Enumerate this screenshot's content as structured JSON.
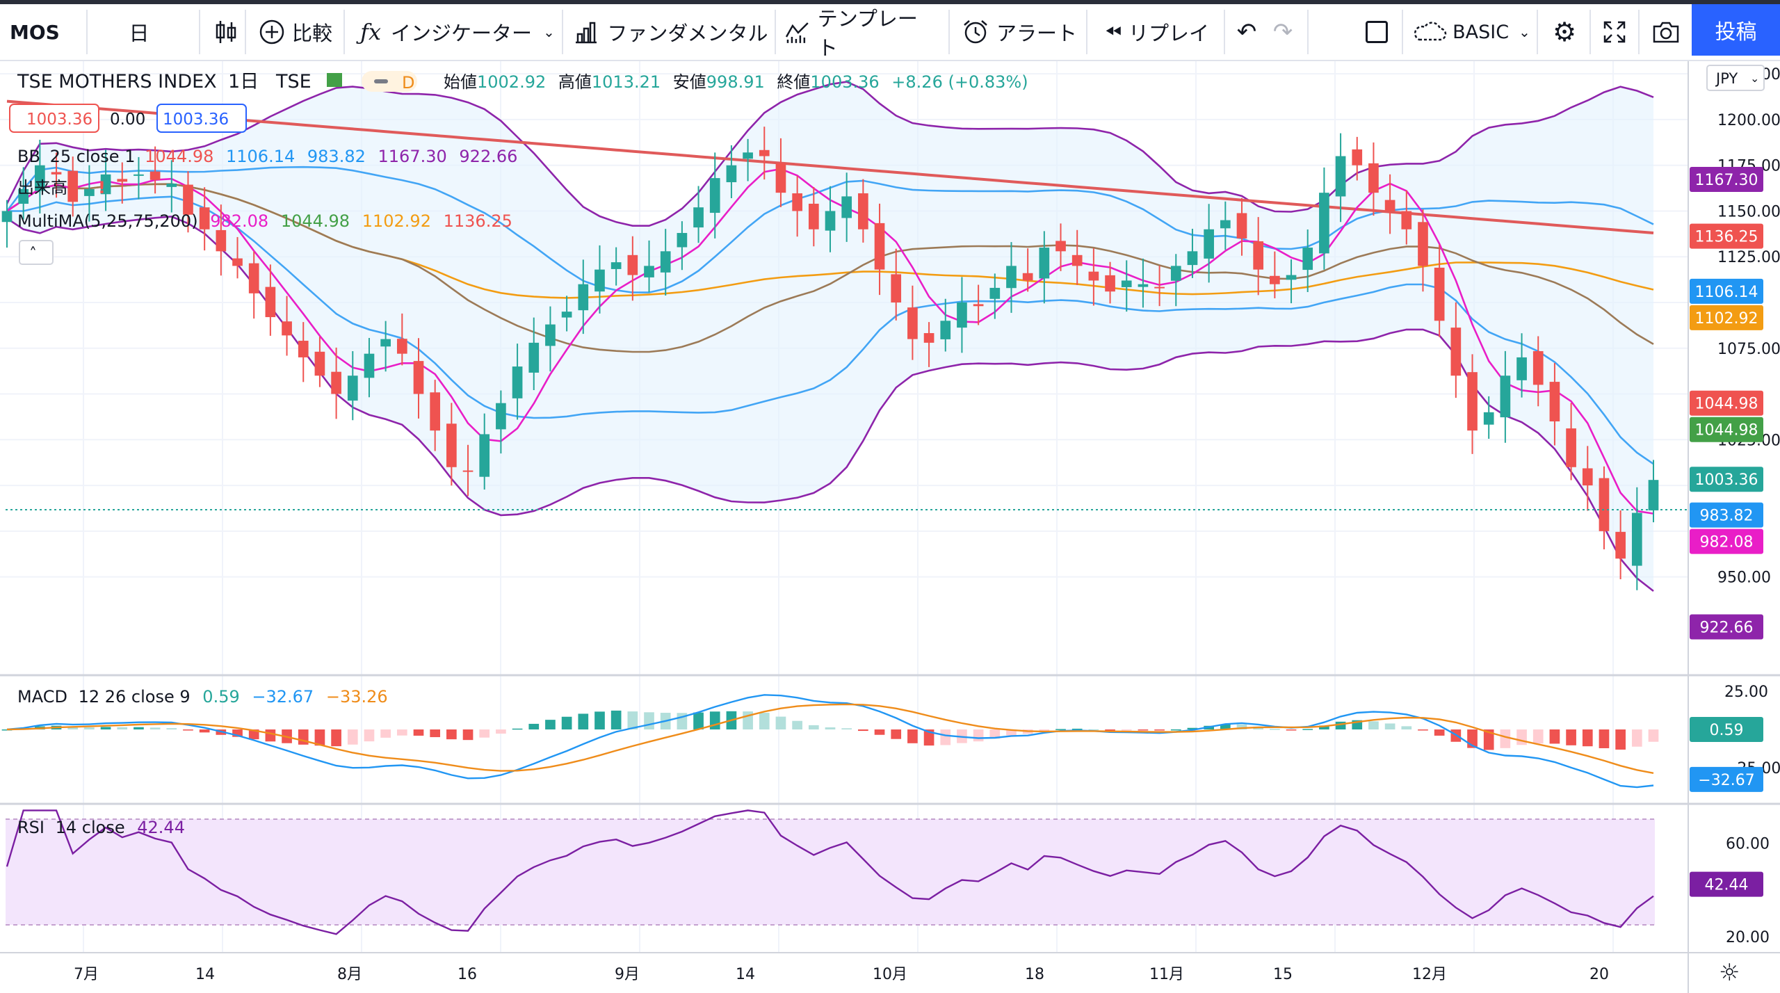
{
  "toolbar": {
    "symbol": "MOS",
    "interval": "日",
    "compare": "比較",
    "indicators": "インジケーター",
    "fundamentals": "ファンダメンタル",
    "templates": "テンプレート",
    "alert": "アラート",
    "replay": "リプレイ",
    "layout": "BASIC",
    "post": "投稿"
  },
  "legend": {
    "title": "TSE MOTHERS INDEX",
    "interval": "1日",
    "exchange": "TSE",
    "flag": "D",
    "open_label": "始値",
    "open": "1002.92",
    "high_label": "高値",
    "high": "1013.21",
    "low_label": "安値",
    "low": "998.91",
    "close_label": "終値",
    "close": "1003.36",
    "change": "+8.26 (+0.83%)",
    "price_box1": "1003.36",
    "price_mid": "0.00",
    "price_box2": "1003.36",
    "bb_name": "BB",
    "bb_params": "25 close 1",
    "bb_values": [
      "1044.98",
      "1106.14",
      "983.82",
      "1167.30",
      "922.66"
    ],
    "volume_label": "出来高",
    "ma_name": "MultiMA(5,25,75,200)",
    "ma_values": [
      "982.08",
      "1044.98",
      "1102.92",
      "1136.25"
    ],
    "macd_name": "MACD",
    "macd_params": "12 26 close 9",
    "macd_values": [
      "0.59",
      "−32.67",
      "−33.26"
    ],
    "rsi_name": "RSI",
    "rsi_params": "14 close",
    "rsi_value": "42.44"
  },
  "currency": "JPY",
  "colors": {
    "up": "#26a69a",
    "down": "#ef5350",
    "bb": "#8e24aa",
    "bb_fill": "#e3f2fd",
    "ma5": "#e91ec7",
    "ma25": "#2196f3",
    "ma75": "#f39c12",
    "ma200": "#e05a5a",
    "ma25b": "#9c7a57",
    "macd": "#2196f3",
    "signal": "#ef8c1a",
    "rsi": "#7b1fa2",
    "rsi_fill": "#f3e5fc"
  },
  "axis": {
    "price_ticks": [
      "1225.00",
      "1200.00",
      "1175.00",
      "1150.00",
      "1125.00",
      "1075.00",
      "1025.00",
      "950.00"
    ],
    "macd_ticks": [
      "25.00",
      "−25.00"
    ],
    "rsi_ticks": [
      "60.00",
      "20.00"
    ],
    "x_ticks": [
      "7月",
      "14",
      "8月",
      "16",
      "9月",
      "14",
      "10月",
      "18",
      "11月",
      "15",
      "12月",
      "20"
    ]
  },
  "price_tags": [
    {
      "v": "1167.30",
      "color": "#8e24aa"
    },
    {
      "v": "1136.25",
      "color": "#ef5350"
    },
    {
      "v": "1106.14",
      "color": "#2196f3"
    },
    {
      "v": "1102.92",
      "color": "#f39c12"
    },
    {
      "v": "1044.98",
      "color": "#ef5350"
    },
    {
      "v": "1044.98",
      "color": "#43a047"
    },
    {
      "v": "1003.36",
      "color": "#26a69a"
    },
    {
      "v": "983.82",
      "color": "#2196f3"
    },
    {
      "v": "982.08",
      "color": "#e91ec7"
    },
    {
      "v": "922.66",
      "color": "#8e24aa"
    }
  ],
  "macd_tags": [
    {
      "v": "0.59",
      "color": "#26a69a"
    },
    {
      "v": "−32.67",
      "color": "#2196f3"
    }
  ],
  "rsi_tag": {
    "v": "42.44",
    "color": "#7b1fa2"
  },
  "chart_data": {
    "type": "candlestick",
    "symbol": "TSE MOTHERS INDEX",
    "y_range": [
      905,
      1230
    ],
    "closes": [
      1150,
      1162,
      1175,
      1170,
      1155,
      1162,
      1170,
      1166,
      1170,
      1167,
      1165,
      1148,
      1140,
      1128,
      1120,
      1105,
      1092,
      1082,
      1070,
      1060,
      1050,
      1060,
      1072,
      1080,
      1072,
      1050,
      1030,
      1010,
      1008,
      1028,
      1045,
      1065,
      1078,
      1088,
      1095,
      1110,
      1118,
      1122,
      1115,
      1120,
      1128,
      1138,
      1152,
      1168,
      1175,
      1182,
      1180,
      1160,
      1150,
      1140,
      1150,
      1158,
      1140,
      1118,
      1100,
      1080,
      1078,
      1090,
      1100,
      1098,
      1108,
      1120,
      1112,
      1130,
      1128,
      1120,
      1112,
      1106,
      1112,
      1110,
      1108,
      1120,
      1128,
      1140,
      1145,
      1135,
      1118,
      1110,
      1115,
      1130,
      1160,
      1180,
      1175,
      1160,
      1150,
      1140,
      1120,
      1090,
      1060,
      1030,
      1040,
      1060,
      1070,
      1055,
      1035,
      1010,
      1000,
      975,
      960,
      985,
      1003
    ],
    "rsi_range": [
      15,
      75
    ],
    "rsi_levels": [
      70,
      30
    ],
    "macd_range": [
      -45,
      30
    ]
  }
}
